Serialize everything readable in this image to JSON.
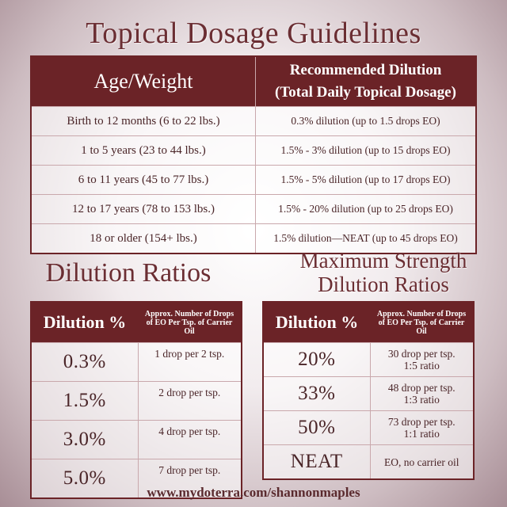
{
  "main": {
    "title": "Topical Dosage Guidelines",
    "header_age": "Age/Weight",
    "header_rec_line1": "Recommended Dilution",
    "header_rec_line2": "(Total Daily Topical Dosage)",
    "rows": [
      {
        "age": "Birth to 12 months (6 to 22 lbs.)",
        "dilution": "0.3% dilution (up to 1.5 drops EO)"
      },
      {
        "age": "1 to 5 years (23 to 44 lbs.)",
        "dilution": "1.5% - 3%  dilution (up to 15 drops EO)"
      },
      {
        "age": "6 to 11 years (45 to 77 lbs.)",
        "dilution": "1.5% - 5%  dilution (up to 17  drops EO)"
      },
      {
        "age": "12 to 17 years (78 to 153 lbs.)",
        "dilution": "1.5% - 20% dilution (up to 25 drops EO)"
      },
      {
        "age": "18 or older (154+ lbs.)",
        "dilution": "1.5% dilution—NEAT (up to 45 drops EO)"
      }
    ]
  },
  "dilution": {
    "title": "Dilution Ratios",
    "header_pct": "Dilution %",
    "header_drops": "Approx. Number of Drops of EO Per Tsp. of Carrier Oil",
    "rows": [
      {
        "pct": "0.3%",
        "drops": "1 drop per 2 tsp."
      },
      {
        "pct": "1.5%",
        "drops": "2 drop per tsp."
      },
      {
        "pct": "3.0%",
        "drops": "4 drop per tsp."
      },
      {
        "pct": "5.0%",
        "drops": "7 drop per tsp."
      }
    ]
  },
  "max": {
    "title_line1": "Maximum Strength",
    "title_line2": "Dilution Ratios",
    "header_pct": "Dilution %",
    "header_drops": "Approx. Number of Drops of EO Per Tsp. of Carrier Oil",
    "rows": [
      {
        "pct": "20%",
        "drops_line1": "30 drop per tsp.",
        "drops_line2": "1:5 ratio"
      },
      {
        "pct": "33%",
        "drops_line1": "48 drop per tsp.",
        "drops_line2": "1:3 ratio"
      },
      {
        "pct": "50%",
        "drops_line1": "73 drop per tsp.",
        "drops_line2": "1:1 ratio"
      },
      {
        "pct": "NEAT",
        "drops_line1": "EO, no carrier oil",
        "drops_line2": ""
      }
    ]
  },
  "website": "www.mydoterra.com/shannonmaples",
  "colors": {
    "header_bg": "#6b2327",
    "title_text": "#6b2e33"
  }
}
